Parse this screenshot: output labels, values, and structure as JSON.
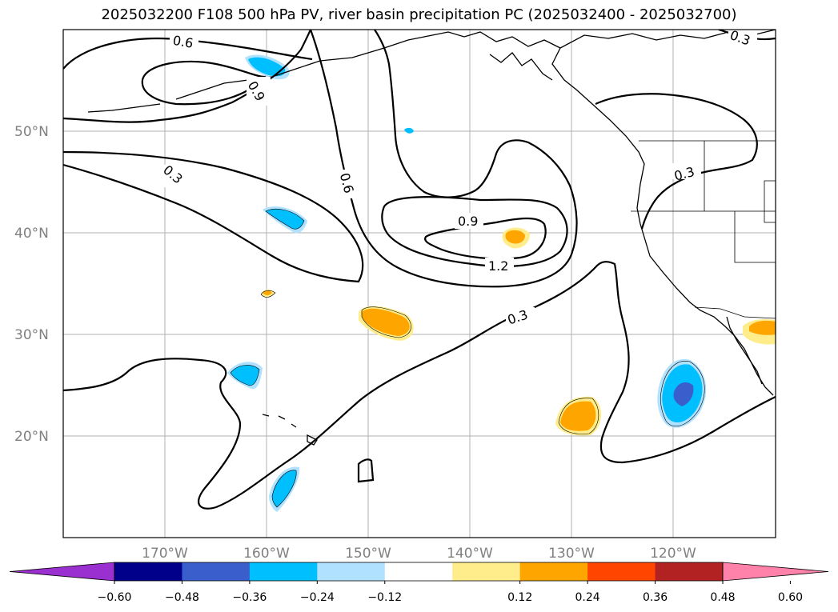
{
  "title": "2025032200 F108 500 hPa PV, river basin precipitation PC (2025032400 - 2025032700)",
  "map": {
    "lon_range": [
      -180,
      -110
    ],
    "lat_range": [
      10,
      60
    ],
    "lon_ticks": [
      "170°W",
      "160°W",
      "150°W",
      "140°W",
      "130°W",
      "120°W"
    ],
    "lat_ticks": [
      "20°N",
      "30°N",
      "40°N",
      "50°N"
    ],
    "gridlines": true,
    "contour_color": "#000000",
    "contour_labels": [
      "0.6",
      "0.9",
      "0.3",
      "0.6",
      "0.9",
      "1.2",
      "0.3",
      "0.3",
      "0.3"
    ]
  },
  "colorbar": {
    "ticks": [
      "−0.60",
      "−0.48",
      "−0.36",
      "−0.24",
      "−0.12",
      "0.12",
      "0.24",
      "0.36",
      "0.48",
      "0.60"
    ],
    "colors": [
      "#9b30d0",
      "#00008b",
      "#3a5fcd",
      "#00bfff",
      "#b0e2ff",
      "#ffffff",
      "#ffec8b",
      "#ffa500",
      "#ff4500",
      "#b22222",
      "#ff82ab"
    ],
    "extend": "both"
  }
}
